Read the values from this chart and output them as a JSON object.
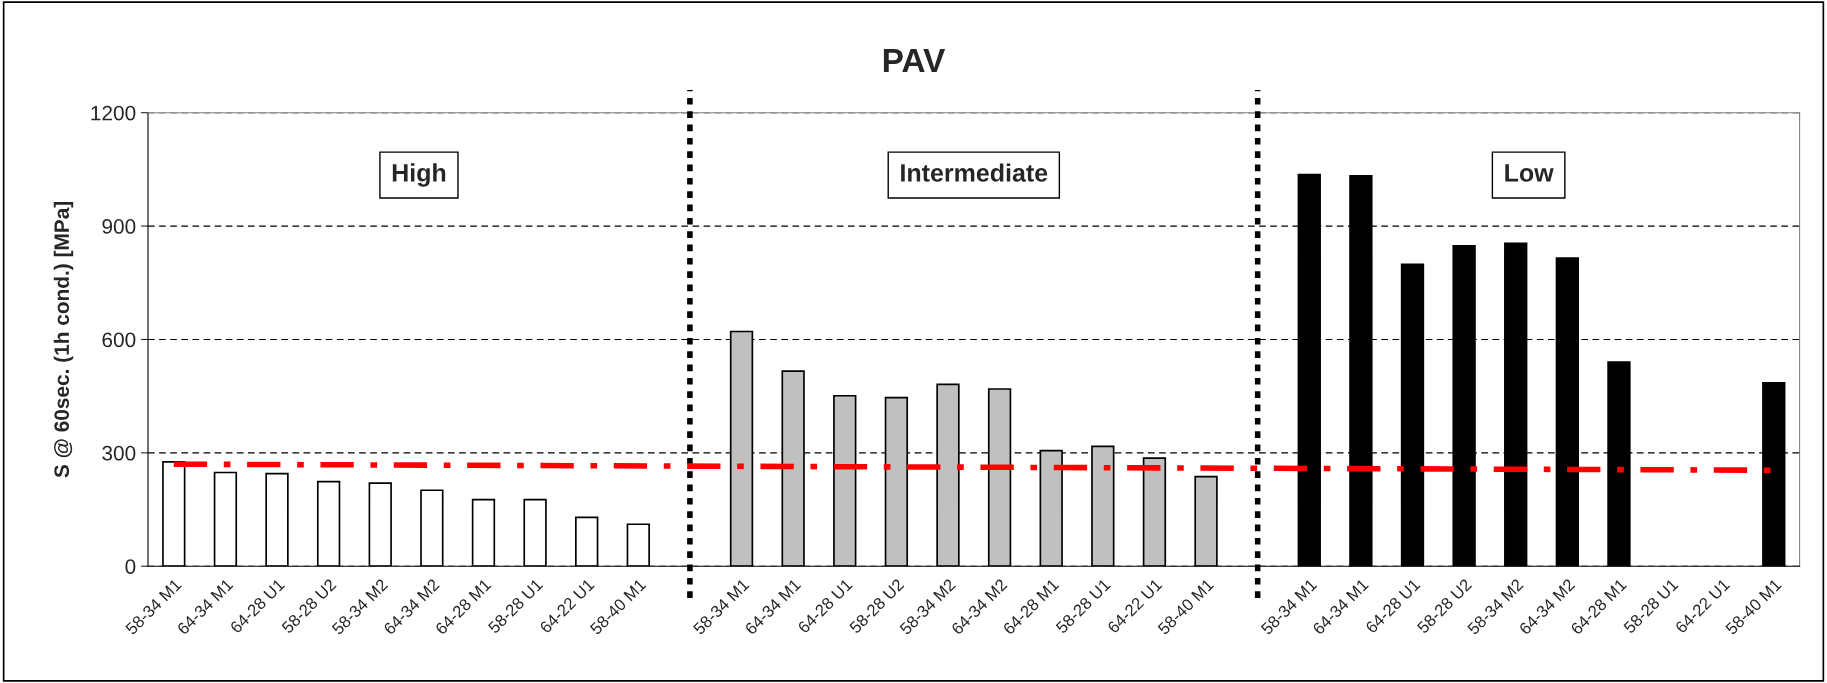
{
  "chart_data": {
    "type": "bar",
    "title": "PAV",
    "ylabel": "S @ 60sec. (1h cond.) [MPa]",
    "categories": [
      "58-34 M1",
      "64-34 M1",
      "64-28 U1",
      "58-28 U2",
      "58-34 M2",
      "64-34 M2",
      "64-28 M1",
      "58-28 U1",
      "64-22 U1",
      "58-40 M1",
      null,
      "58-34 M1",
      "64-34 M1",
      "64-28 U1",
      "58-28 U2",
      "58-34 M2",
      "64-34 M2",
      "64-28 M1",
      "58-28 U1",
      "64-22 U1",
      "58-40 M1",
      null,
      "58-34 M1",
      "64-34 M1",
      "64-28 U1",
      "58-28 U2",
      "58-34 M2",
      "64-34 M2",
      "64-28 M1",
      "58-28 U1",
      "64-22 U1",
      "58-40 M1"
    ],
    "series": [
      {
        "values": [
          276,
          248,
          245,
          224,
          220,
          201,
          176,
          176,
          129,
          111,
          null,
          621,
          516,
          451,
          446,
          481,
          469,
          306,
          317,
          286,
          237,
          null,
          1036,
          1033,
          799,
          848,
          854,
          815,
          540,
          null,
          null,
          485
        ],
        "colors": [
          "#ffffff",
          "#ffffff",
          "#ffffff",
          "#ffffff",
          "#ffffff",
          "#ffffff",
          "#ffffff",
          "#ffffff",
          "#ffffff",
          "#ffffff",
          null,
          "#c0c0c0",
          "#c0c0c0",
          "#c0c0c0",
          "#c0c0c0",
          "#c0c0c0",
          "#c0c0c0",
          "#c0c0c0",
          "#c0c0c0",
          "#c0c0c0",
          "#c0c0c0",
          null,
          "#000000",
          "#000000",
          "#000000",
          "#000000",
          "#000000",
          "#000000",
          "#000000",
          "#000000",
          "#000000",
          "#000000"
        ]
      },
      {
        "type": "line",
        "color": "#ff0000",
        "line_style": "dashdot",
        "values": [
          270,
          null,
          null,
          null,
          null,
          null,
          null,
          null,
          null,
          null,
          null,
          null,
          null,
          null,
          null,
          null,
          null,
          null,
          null,
          null,
          null,
          null,
          null,
          null,
          null,
          null,
          null,
          null,
          null,
          null,
          null,
          254
        ]
      }
    ],
    "annotations": [
      "High",
      "Intermediate",
      "Low"
    ],
    "ylim": [
      0,
      1200
    ],
    "yticks": [
      0,
      300,
      600,
      900,
      1200
    ],
    "grid": "y"
  }
}
